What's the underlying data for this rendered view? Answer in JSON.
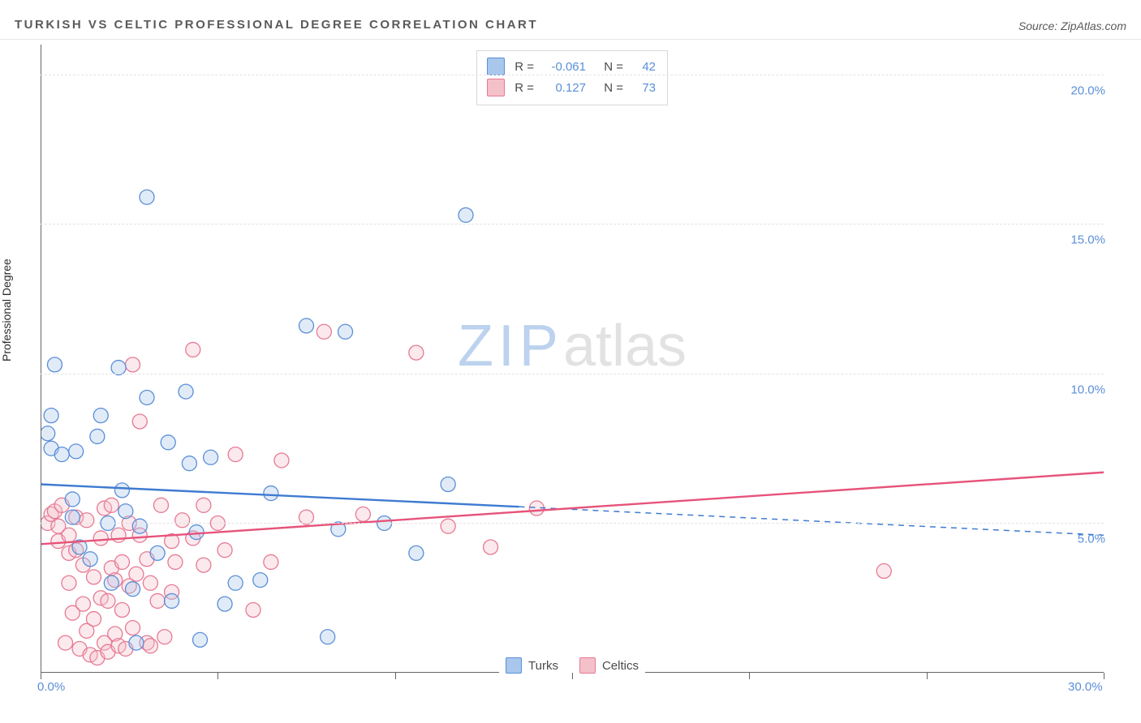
{
  "title": "TURKISH VS CELTIC PROFESSIONAL DEGREE CORRELATION CHART",
  "source": "Source: ZipAtlas.com",
  "y_axis_label": "Professional Degree",
  "watermark": {
    "part1": "ZIP",
    "part2": "atlas"
  },
  "chart": {
    "type": "scatter",
    "background_color": "#ffffff",
    "grid_color": "#e2e2e2",
    "axis_color": "#666666",
    "tick_label_color": "#5a8fd8",
    "xlim": [
      0,
      30
    ],
    "ylim": [
      0,
      21
    ],
    "x_ticks": [
      0,
      5,
      10,
      15,
      20,
      25,
      30
    ],
    "x_tick_labels": [
      "0.0%",
      "",
      "",
      "",
      "",
      "",
      "30.0%"
    ],
    "y_gridlines": [
      5,
      10,
      15,
      20
    ],
    "y_tick_labels": [
      "5.0%",
      "10.0%",
      "15.0%",
      "20.0%"
    ],
    "marker_radius": 9,
    "marker_fill_opacity": 0.35,
    "marker_stroke_width": 1.3,
    "line_width": 2.4
  },
  "series": [
    {
      "name": "Turks",
      "fill_color": "#a9c6ec",
      "stroke_color": "#5a8fd8",
      "line_color": "#3f7bd1",
      "r_value": "-0.061",
      "n_value": "42",
      "points": [
        [
          0.3,
          8.6
        ],
        [
          0.2,
          8.0
        ],
        [
          0.3,
          7.5
        ],
        [
          0.6,
          7.3
        ],
        [
          0.4,
          10.3
        ],
        [
          1.0,
          7.4
        ],
        [
          0.9,
          5.2
        ],
        [
          0.9,
          5.8
        ],
        [
          1.1,
          4.2
        ],
        [
          1.4,
          3.8
        ],
        [
          1.6,
          7.9
        ],
        [
          1.7,
          8.6
        ],
        [
          1.9,
          5.0
        ],
        [
          2.0,
          3.0
        ],
        [
          2.2,
          10.2
        ],
        [
          2.3,
          6.1
        ],
        [
          2.4,
          5.4
        ],
        [
          2.6,
          2.8
        ],
        [
          2.7,
          1.0
        ],
        [
          2.8,
          4.9
        ],
        [
          3.0,
          15.9
        ],
        [
          3.0,
          9.2
        ],
        [
          3.3,
          4.0
        ],
        [
          3.6,
          7.7
        ],
        [
          3.7,
          2.4
        ],
        [
          4.1,
          9.4
        ],
        [
          4.2,
          7.0
        ],
        [
          4.4,
          4.7
        ],
        [
          4.5,
          1.1
        ],
        [
          4.8,
          7.2
        ],
        [
          5.2,
          2.3
        ],
        [
          5.5,
          3.0
        ],
        [
          6.2,
          3.1
        ],
        [
          6.5,
          6.0
        ],
        [
          7.5,
          11.6
        ],
        [
          8.1,
          1.2
        ],
        [
          8.4,
          4.8
        ],
        [
          8.6,
          11.4
        ],
        [
          9.7,
          5.0
        ],
        [
          10.6,
          4.0
        ],
        [
          11.5,
          6.3
        ],
        [
          12.0,
          15.3
        ]
      ],
      "trend": {
        "x1": 0,
        "y1": 6.3,
        "x2": 13.5,
        "y2": 5.55,
        "dash_x2": 30,
        "dash_y2": 4.6
      }
    },
    {
      "name": "Celtics",
      "fill_color": "#f4c0ca",
      "stroke_color": "#e67a93",
      "line_color": "#e6537a",
      "r_value": "0.127",
      "n_value": "73",
      "points": [
        [
          0.2,
          5.0
        ],
        [
          0.3,
          5.3
        ],
        [
          0.4,
          5.4
        ],
        [
          0.5,
          4.9
        ],
        [
          0.5,
          4.4
        ],
        [
          0.6,
          5.6
        ],
        [
          0.7,
          1.0
        ],
        [
          0.8,
          4.6
        ],
        [
          0.8,
          4.0
        ],
        [
          0.8,
          3.0
        ],
        [
          0.9,
          2.0
        ],
        [
          1.0,
          5.2
        ],
        [
          1.0,
          4.1
        ],
        [
          1.1,
          0.8
        ],
        [
          1.2,
          3.6
        ],
        [
          1.2,
          2.3
        ],
        [
          1.3,
          5.1
        ],
        [
          1.3,
          1.4
        ],
        [
          1.4,
          0.6
        ],
        [
          1.5,
          1.8
        ],
        [
          1.5,
          3.2
        ],
        [
          1.6,
          0.5
        ],
        [
          1.7,
          4.5
        ],
        [
          1.7,
          2.5
        ],
        [
          1.8,
          1.0
        ],
        [
          1.8,
          5.5
        ],
        [
          1.9,
          2.4
        ],
        [
          1.9,
          0.7
        ],
        [
          2.0,
          3.5
        ],
        [
          2.0,
          5.6
        ],
        [
          2.1,
          1.3
        ],
        [
          2.1,
          3.1
        ],
        [
          2.2,
          4.6
        ],
        [
          2.2,
          0.9
        ],
        [
          2.3,
          3.7
        ],
        [
          2.3,
          2.1
        ],
        [
          2.4,
          0.8
        ],
        [
          2.5,
          2.9
        ],
        [
          2.5,
          5.0
        ],
        [
          2.6,
          10.3
        ],
        [
          2.6,
          1.5
        ],
        [
          2.7,
          3.3
        ],
        [
          2.8,
          4.6
        ],
        [
          2.8,
          8.4
        ],
        [
          3.0,
          3.8
        ],
        [
          3.0,
          1.0
        ],
        [
          3.1,
          3.0
        ],
        [
          3.1,
          0.9
        ],
        [
          3.3,
          2.4
        ],
        [
          3.4,
          5.6
        ],
        [
          3.5,
          1.2
        ],
        [
          3.7,
          2.7
        ],
        [
          3.7,
          4.4
        ],
        [
          3.8,
          3.7
        ],
        [
          4.0,
          5.1
        ],
        [
          4.3,
          4.5
        ],
        [
          4.3,
          10.8
        ],
        [
          4.6,
          5.6
        ],
        [
          4.6,
          3.6
        ],
        [
          5.0,
          5.0
        ],
        [
          5.2,
          4.1
        ],
        [
          5.5,
          7.3
        ],
        [
          6.0,
          2.1
        ],
        [
          6.5,
          3.7
        ],
        [
          6.8,
          7.1
        ],
        [
          7.5,
          5.2
        ],
        [
          8.0,
          11.4
        ],
        [
          9.1,
          5.3
        ],
        [
          10.6,
          10.7
        ],
        [
          11.5,
          4.9
        ],
        [
          12.7,
          4.2
        ],
        [
          14.0,
          5.5
        ],
        [
          23.8,
          3.4
        ]
      ],
      "trend": {
        "x1": 0,
        "y1": 4.3,
        "x2": 30,
        "y2": 6.7
      }
    }
  ],
  "legend_top": {
    "r_label": "R =",
    "n_label": "N ="
  },
  "legend_bottom_labels": [
    "Turks",
    "Celtics"
  ]
}
